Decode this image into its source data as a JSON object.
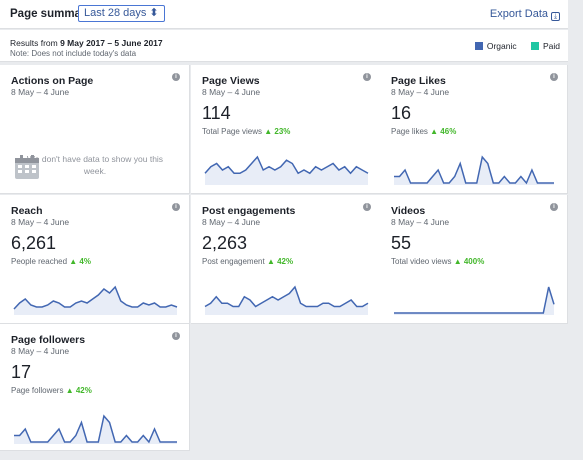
{
  "header": {
    "title": "Page summary",
    "range": "Last 28 days ⬍",
    "export": "Export Data",
    "export_icon": "⤓"
  },
  "infobar": {
    "results_prefix": "Results from ",
    "results_range": "9 May 2017 – 5 June 2017",
    "note": "Note: Does not include today's data",
    "legend": [
      {
        "label": "Organic",
        "color": "#4267b2"
      },
      {
        "label": "Paid",
        "color": "#1fc6a3"
      }
    ]
  },
  "cards": [
    {
      "title": "Actions on Page",
      "dates": "8 May – 4 June",
      "nodata": "We don't have data to show you this week.",
      "icon": "calendar-icon"
    },
    {
      "title": "Page Views",
      "dates": "8 May – 4 June",
      "value": "114",
      "label": "Total Page views",
      "change": "▲ 23%",
      "series": [
        3,
        5,
        6,
        4,
        5,
        3,
        3,
        4,
        6,
        8,
        4,
        5,
        4,
        5,
        7,
        6,
        3,
        4,
        3,
        5,
        4,
        5,
        6,
        4,
        5,
        3,
        5,
        4,
        3
      ]
    },
    {
      "title": "Page Likes",
      "dates": "8 May – 4 June",
      "value": "16",
      "label": "Page likes",
      "change": "▲ 46%",
      "series": [
        1,
        1,
        2,
        0,
        0,
        0,
        0,
        1,
        2,
        0,
        0,
        1,
        3,
        0,
        0,
        0,
        4,
        3,
        0,
        0,
        1,
        0,
        0,
        1,
        0,
        2,
        0,
        0,
        0,
        0
      ]
    },
    {
      "title": "Reach",
      "dates": "8 May – 4 June",
      "value": "6,261",
      "label": "People reached",
      "change": "▲ 4%",
      "series": [
        2,
        5,
        7,
        4,
        3,
        3,
        4,
        6,
        5,
        3,
        3,
        5,
        6,
        5,
        7,
        9,
        12,
        10,
        13,
        6,
        4,
        3,
        3,
        5,
        4,
        5,
        3,
        3,
        4,
        3
      ]
    },
    {
      "title": "Post engagements",
      "dates": "8 May – 4 June",
      "value": "2,263",
      "label": "Post engagement",
      "change": "▲ 42%",
      "series": [
        2,
        3,
        5,
        3,
        3,
        2,
        2,
        5,
        4,
        2,
        3,
        4,
        5,
        4,
        5,
        6,
        8,
        3,
        2,
        2,
        2,
        3,
        3,
        2,
        2,
        3,
        4,
        2,
        2,
        3
      ]
    },
    {
      "title": "Videos",
      "dates": "8 May – 4 June",
      "value": "55",
      "label": "Total video views",
      "change": "▲ 400%",
      "series": [
        0,
        0,
        0,
        0,
        0,
        0,
        0,
        0,
        0,
        0,
        0,
        0,
        0,
        0,
        0,
        0,
        0,
        0,
        0,
        0,
        0,
        0,
        0,
        0,
        0,
        0,
        0,
        0,
        0,
        6,
        2
      ]
    },
    {
      "title": "Page followers",
      "dates": "8 May – 4 June",
      "value": "17",
      "label": "Page followers",
      "change": "▲ 42%",
      "series": [
        1,
        1,
        2,
        0,
        0,
        0,
        0,
        1,
        2,
        0,
        0,
        1,
        3,
        0,
        0,
        0,
        4,
        3,
        0,
        0,
        1,
        0,
        0,
        1,
        0,
        2,
        0,
        0,
        0,
        0
      ]
    }
  ]
}
